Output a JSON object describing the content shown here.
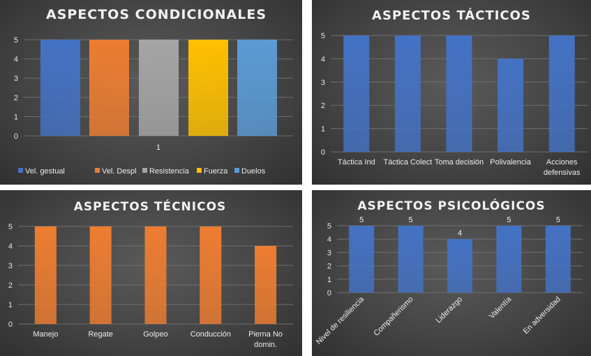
{
  "colors": {
    "blue": "#4472c4",
    "orange": "#ed7d31",
    "gray": "#a5a5a5",
    "gold": "#ffc000",
    "lightblue": "#5b9bd5"
  },
  "chart_data": [
    {
      "type": "bar",
      "title": "ASPECTOS CONDICIONALES",
      "categories": [
        "1"
      ],
      "series": [
        {
          "name": "Vel. gestual",
          "values": [
            5
          ],
          "color": "#4472c4"
        },
        {
          "name": "Vel. Despl",
          "values": [
            5
          ],
          "color": "#ed7d31"
        },
        {
          "name": "Resistencia",
          "values": [
            5
          ],
          "color": "#a5a5a5"
        },
        {
          "name": "Fuerza",
          "values": [
            5
          ],
          "color": "#ffc000"
        },
        {
          "name": "Duelos",
          "values": [
            5
          ],
          "color": "#5b9bd5"
        }
      ],
      "yticks": [
        "0",
        "1",
        "2",
        "3",
        "4",
        "5"
      ],
      "ylim": [
        0,
        5
      ],
      "legend": "bottom",
      "grid": true
    },
    {
      "type": "bar",
      "title": "ASPECTOS TÁCTICOS",
      "categories": [
        "Táctica Ind",
        "Táctica Colect",
        "Toma decisión",
        "Polivalencia",
        "Acciones defensivas"
      ],
      "values": [
        5,
        5,
        5,
        4,
        5
      ],
      "color": "#4472c4",
      "yticks": [
        "0",
        "1",
        "2",
        "3",
        "4",
        "5"
      ],
      "ylim": [
        0,
        5
      ],
      "grid": true
    },
    {
      "type": "bar",
      "title": "ASPECTOS TÉCNICOS",
      "categories": [
        "Manejo",
        "Regate",
        "Golpeo",
        "Conducción",
        "Pierna No domin."
      ],
      "values": [
        5,
        5,
        5,
        5,
        4
      ],
      "color": "#ed7d31",
      "yticks": [
        "0",
        "1",
        "2",
        "3",
        "4",
        "5"
      ],
      "ylim": [
        0,
        5
      ],
      "grid": true
    },
    {
      "type": "bar",
      "title": "ASPECTOS PSICOLÓGICOS",
      "categories": [
        "Nivel de resiliencia",
        "Compañerismo",
        "Liderazgo",
        "Valentía",
        "En adversidad"
      ],
      "values": [
        5,
        5,
        4,
        5,
        5
      ],
      "data_labels": [
        "5",
        "5",
        "4",
        "5",
        "5"
      ],
      "color": "#4472c4",
      "yticks": [
        "0",
        "1",
        "2",
        "3",
        "4",
        "5"
      ],
      "ylim": [
        0,
        5
      ],
      "grid": true,
      "rotated_categories": true
    }
  ]
}
